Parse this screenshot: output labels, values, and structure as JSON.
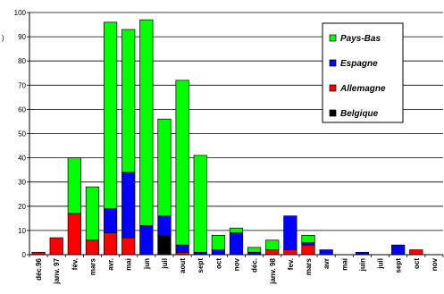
{
  "chart_data": {
    "type": "bar",
    "stacked": true,
    "categories": [
      "déc.96",
      "janv. 97",
      "fév.",
      "mars",
      "avr.",
      "mai",
      "jun",
      "juil",
      "aout",
      "sept",
      "oct",
      "nov",
      "déc.",
      "janv. 98",
      "fev.",
      "mars",
      "avr",
      "mai",
      "juin",
      "juil",
      "sept",
      "oct",
      "nov"
    ],
    "series": [
      {
        "name": "Belgique",
        "color": "#000000",
        "values": [
          0,
          0,
          0,
          0,
          0,
          0,
          0,
          8,
          0,
          0,
          0,
          0,
          0,
          0,
          0,
          0,
          0,
          0,
          0,
          0,
          0,
          0,
          0
        ]
      },
      {
        "name": "Allemagne",
        "color": "#ff0000",
        "values": [
          1,
          7,
          17,
          6,
          9,
          7,
          0,
          0,
          1,
          0,
          0,
          0,
          0,
          2,
          2,
          4,
          0,
          0,
          0,
          0,
          0,
          2,
          0
        ]
      },
      {
        "name": "Espagne",
        "color": "#0000ff",
        "values": [
          0,
          0,
          0,
          0,
          10,
          27,
          12,
          8,
          3,
          1,
          2,
          9,
          1,
          0,
          14,
          1,
          2,
          0,
          1,
          0,
          4,
          0,
          0
        ]
      },
      {
        "name": "Pays-Bas",
        "color": "#00ff00",
        "values": [
          0,
          0,
          23,
          22,
          77,
          59,
          85,
          40,
          68,
          40,
          6,
          2,
          2,
          4,
          0,
          3,
          0,
          0,
          0,
          0,
          0,
          0,
          0
        ]
      }
    ],
    "legend_order": [
      "Pays-Bas",
      "Espagne",
      "Allemagne",
      "Belgique"
    ],
    "legend_position": "top-right",
    "yticks": [
      "0",
      "10",
      "20",
      "30",
      "40",
      "50",
      "60",
      "70",
      "80",
      "90",
      "100"
    ],
    "ylim": [
      0,
      100
    ],
    "grid": true,
    "title": "",
    "xlabel": "",
    "ylabel": ""
  },
  "fragment_text": ")"
}
